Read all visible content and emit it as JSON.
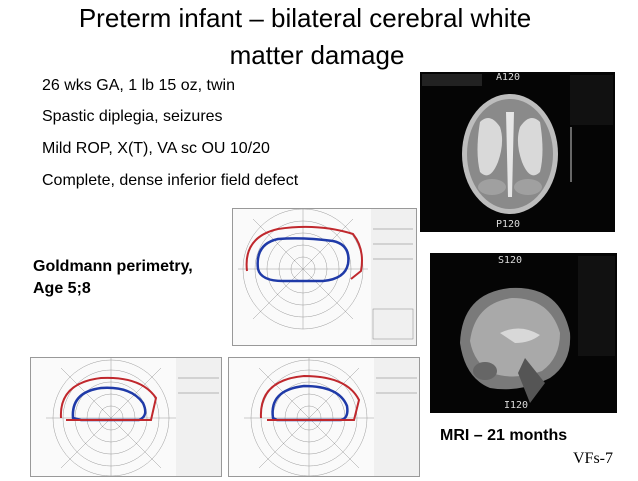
{
  "slide": {
    "title_line1": "Preterm infant –  bilateral cerebral white",
    "title_line2": "matter damage",
    "bullets": [
      "26 wks GA, 1 lb 15 oz, twin",
      "Spastic diplegia, seizures",
      "Mild ROP,  X(T),  VA sc OU 10/20",
      "Complete, dense inferior field defect"
    ],
    "goldmann_label_1": "Goldmann  perimetry,",
    "goldmann_label_2": "Age 5;8",
    "mri_label": "MRI – 21 months",
    "slide_number": "VFs-7"
  },
  "images": {
    "mri_axial": {
      "marker_top": "A120",
      "marker_bottom": "P120"
    },
    "mri_sagittal": {
      "marker_top": "S120",
      "marker_bottom": "I120"
    }
  }
}
